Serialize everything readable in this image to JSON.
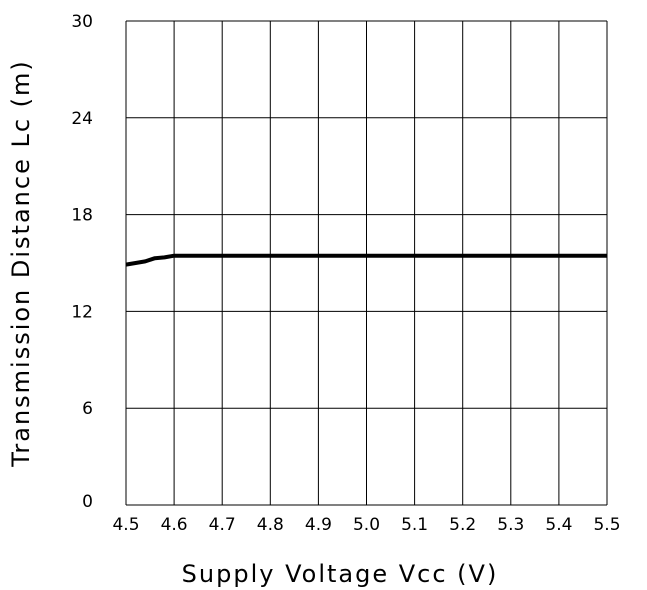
{
  "chart_data": {
    "type": "line",
    "title": "",
    "xlabel": "Supply Voltage Vcc (V)",
    "ylabel": "Transmission Distance Lc (m)",
    "xlim": [
      4.5,
      5.5
    ],
    "ylim": [
      0,
      30
    ],
    "x_ticks": [
      4.5,
      4.6,
      4.7,
      4.8,
      4.9,
      5.0,
      5.1,
      5.2,
      5.3,
      5.4,
      5.5
    ],
    "x_tick_labels": [
      "4.5",
      "4.6",
      "4.7",
      "4.8",
      "4.9",
      "5.0",
      "5.1",
      "5.2",
      "5.3",
      "5.4",
      "5.5"
    ],
    "y_ticks": [
      0,
      6,
      12,
      18,
      24,
      30
    ],
    "y_tick_labels": [
      "0",
      "6",
      "12",
      "18",
      "24",
      "30"
    ],
    "grid": true,
    "legend": "none",
    "series": [
      {
        "color": "#000000",
        "x": [
          4.5,
          4.52,
          4.54,
          4.56,
          4.58,
          4.6,
          4.7,
          4.8,
          4.9,
          5.0,
          5.1,
          5.2,
          5.3,
          5.4,
          5.5
        ],
        "y": [
          14.9,
          15.0,
          15.1,
          15.3,
          15.35,
          15.45,
          15.45,
          15.45,
          15.45,
          15.45,
          15.45,
          15.45,
          15.45,
          15.45,
          15.45
        ]
      }
    ]
  }
}
